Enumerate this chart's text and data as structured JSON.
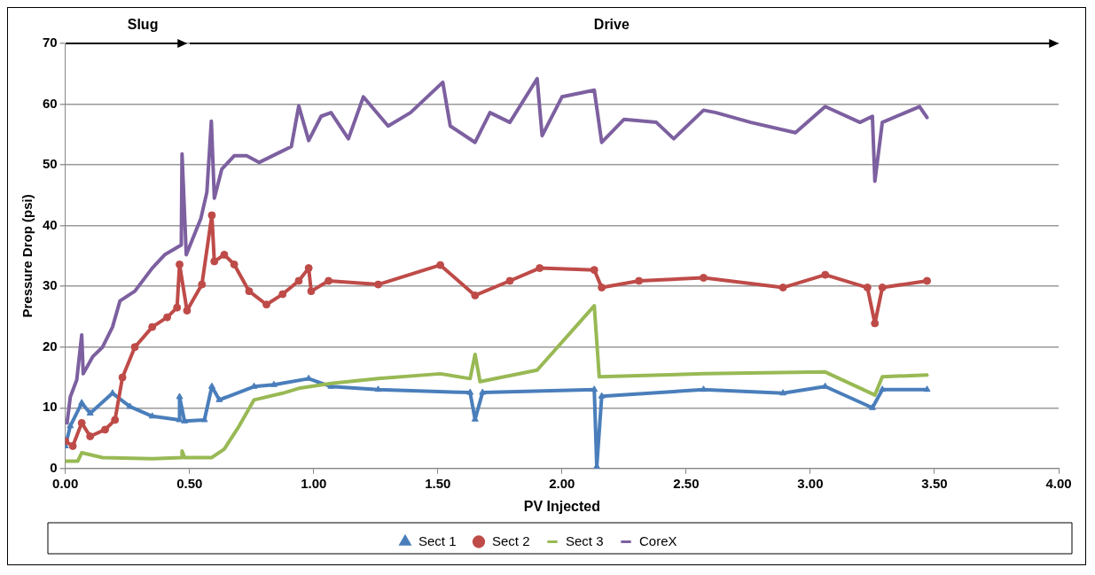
{
  "chart_data": {
    "type": "line",
    "xlabel": "PV Injected",
    "ylabel": "Pressure Drop (psi)",
    "xlim": [
      0,
      4
    ],
    "xticks": [
      {
        "value": 0,
        "label": "0.00"
      },
      {
        "value": 0.5,
        "label": "0.50"
      },
      {
        "value": 1,
        "label": "1.00"
      },
      {
        "value": 1.5,
        "label": "1.50"
      },
      {
        "value": 2,
        "label": "2.00"
      },
      {
        "value": 2.5,
        "label": "2.50"
      },
      {
        "value": 3,
        "label": "3.00"
      },
      {
        "value": 3.5,
        "label": "3.50"
      },
      {
        "value": 4,
        "label": "4.00"
      }
    ],
    "ylim": [
      0,
      70
    ],
    "yticks": [
      0,
      10,
      20,
      30,
      40,
      50,
      60,
      70
    ],
    "grid": "y",
    "legend": "bottom",
    "annotations": [
      "Slug",
      "Drive"
    ],
    "series": [
      {
        "name": "Sect 1",
        "color": "#4a7ebb",
        "marker": "triangle",
        "x": [
          0,
          0.02,
          0.066,
          0.1,
          0.19,
          0.26,
          0.35,
          0.46,
          0.46,
          0.48,
          0.56,
          0.59,
          0.62,
          0.76,
          0.84,
          0.98,
          1.07,
          1.26,
          1.63,
          1.65,
          1.68,
          2.13,
          2.14,
          2.16,
          2.57,
          2.89,
          3.06,
          3.25,
          3.29,
          3.47
        ],
        "values": [
          3.7,
          7,
          10.8,
          9.1,
          12.4,
          10.2,
          8.6,
          8,
          11.8,
          7.8,
          8,
          13.5,
          11.3,
          13.5,
          13.8,
          14.8,
          13.5,
          13,
          12.5,
          8.1,
          12.5,
          13,
          0.3,
          11.9,
          13,
          12.4,
          13.5,
          10,
          13,
          13
        ]
      },
      {
        "name": "Sect 2",
        "color": "#be4b48",
        "marker": "circle",
        "x": [
          0,
          0.03,
          0.066,
          0.1,
          0.16,
          0.2,
          0.23,
          0.28,
          0.35,
          0.41,
          0.45,
          0.46,
          0.49,
          0.55,
          0.59,
          0.6,
          0.64,
          0.68,
          0.74,
          0.81,
          0.875,
          0.94,
          0.98,
          0.99,
          1.06,
          1.26,
          1.51,
          1.65,
          1.79,
          1.91,
          2.13,
          2.16,
          2.31,
          2.57,
          2.89,
          3.06,
          3.23,
          3.26,
          3.29,
          3.47
        ],
        "values": [
          4.5,
          3.7,
          7.5,
          5.3,
          6.4,
          8,
          15,
          20,
          23.3,
          24.9,
          26.5,
          33.6,
          26,
          30.3,
          41.7,
          34.1,
          35.2,
          33.6,
          29.2,
          27,
          28.7,
          30.9,
          33,
          29.2,
          30.9,
          30.3,
          33.5,
          28.5,
          30.9,
          33,
          32.7,
          29.8,
          30.9,
          31.4,
          29.8,
          31.9,
          29.8,
          23.9,
          29.8,
          30.9
        ]
      },
      {
        "name": "Sect 3",
        "color": "#98b954",
        "marker": "none",
        "x": [
          0,
          0.05,
          0.066,
          0.15,
          0.35,
          0.47,
          0.47,
          0.48,
          0.59,
          0.64,
          0.7,
          0.76,
          0.875,
          0.94,
          1.07,
          1.26,
          1.51,
          1.63,
          1.65,
          1.67,
          1.9,
          2.13,
          2.15,
          2.57,
          3.06,
          3.26,
          3.29,
          3.47
        ],
        "values": [
          1.2,
          1.2,
          2.6,
          1.8,
          1.6,
          1.8,
          2.9,
          1.8,
          1.8,
          3.2,
          7,
          11.3,
          12.4,
          13.2,
          14,
          14.8,
          15.6,
          14.8,
          18.8,
          14.3,
          16.2,
          26.8,
          15.1,
          15.6,
          15.9,
          12.1,
          15.1,
          15.4
        ]
      },
      {
        "name": "CoreX",
        "color": "#7d60a0",
        "marker": "none",
        "x": [
          0.007,
          0.02,
          0.046,
          0.066,
          0.072,
          0.11,
          0.15,
          0.19,
          0.22,
          0.28,
          0.35,
          0.4,
          0.467,
          0.47,
          0.487,
          0.546,
          0.57,
          0.588,
          0.6,
          0.63,
          0.68,
          0.73,
          0.78,
          0.86,
          0.91,
          0.94,
          0.98,
          1.03,
          1.07,
          1.14,
          1.2,
          1.3,
          1.39,
          1.52,
          1.55,
          1.65,
          1.71,
          1.79,
          1.9,
          1.92,
          2.0,
          2.13,
          2.16,
          2.25,
          2.38,
          2.45,
          2.57,
          2.62,
          2.76,
          2.94,
          3.06,
          3.2,
          3.25,
          3.26,
          3.29,
          3.44,
          3.47
        ],
        "values": [
          7.5,
          11.8,
          14.6,
          22,
          15.6,
          18.4,
          20,
          23.3,
          27.6,
          29.2,
          33,
          35.2,
          36.8,
          51.8,
          35.2,
          41.2,
          45.5,
          57.2,
          44.5,
          49.3,
          51.5,
          51.5,
          50.4,
          52,
          53,
          59.7,
          54,
          58,
          58.6,
          54.3,
          61.2,
          56.4,
          58.6,
          63.6,
          56.4,
          53.7,
          58.6,
          57,
          64.2,
          54.8,
          61.2,
          62.3,
          53.7,
          57.5,
          57,
          54.3,
          59,
          58.6,
          57,
          55.3,
          59.6,
          57,
          58,
          47.3,
          57,
          59.6,
          57.8
        ]
      }
    ]
  }
}
